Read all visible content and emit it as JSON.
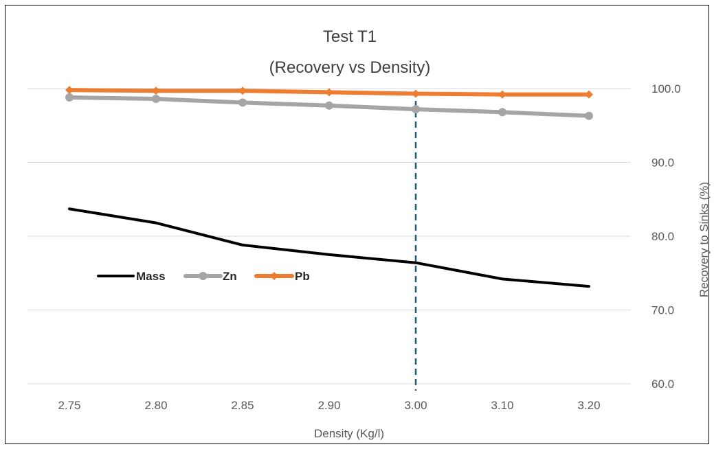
{
  "chart_data": {
    "type": "line",
    "title": "Test T1",
    "subtitle": "(Recovery vs Density)",
    "xlabel": "Density (Kg/l)",
    "ylabel": "Recovery to Sinks (%)",
    "categories": [
      "2.75",
      "2.80",
      "2.85",
      "2.90",
      "3.00",
      "3.10",
      "3.20"
    ],
    "ylim": [
      60,
      100
    ],
    "yticks": [
      "60.0",
      "70.0",
      "80.0",
      "90.0",
      "100.0"
    ],
    "y_axis_position": "right",
    "grid": true,
    "legend_position": "left-middle",
    "reference_line": {
      "category": "3.00",
      "style": "dashed",
      "color": "#1f5a7a"
    },
    "series": [
      {
        "name": "Mass",
        "color": "#000000",
        "marker": "none",
        "values": [
          83.7,
          81.8,
          78.8,
          77.5,
          76.4,
          74.2,
          73.2
        ]
      },
      {
        "name": "Zn",
        "color": "#a5a5a5",
        "marker": "circle",
        "values": [
          98.8,
          98.6,
          98.1,
          97.7,
          97.2,
          96.8,
          96.3
        ]
      },
      {
        "name": "Pb",
        "color": "#ed7d31",
        "marker": "diamond",
        "values": [
          99.8,
          99.7,
          99.7,
          99.5,
          99.3,
          99.2,
          99.2
        ]
      }
    ]
  }
}
